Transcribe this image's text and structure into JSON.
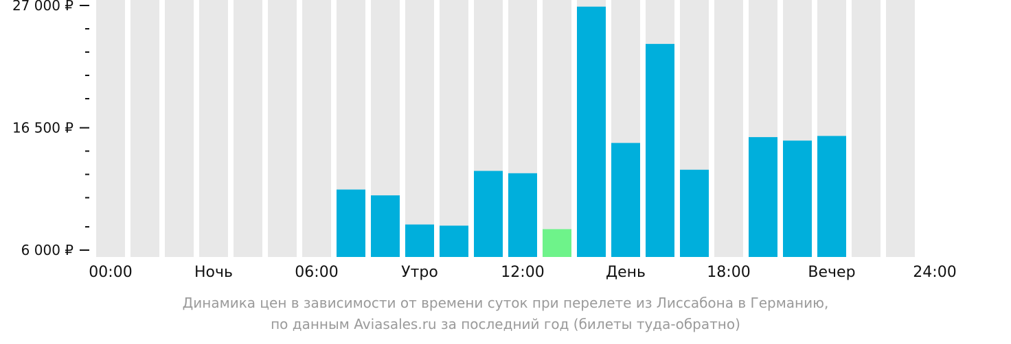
{
  "chart_data": {
    "type": "bar",
    "ylim": [
      6000,
      27000
    ],
    "y_ticks": [
      {
        "value": 27000,
        "label": "27 000 ₽"
      },
      {
        "value": 16500,
        "label": "16 500 ₽"
      },
      {
        "value": 6000,
        "label": "6 000 ₽"
      }
    ],
    "y_minor_ticks": [
      25000,
      23000,
      21000,
      19000,
      14500,
      12500,
      10500,
      8000
    ],
    "x_tick_labels": [
      "00:00",
      "Ночь",
      "06:00",
      "Утро",
      "12:00",
      "День",
      "18:00",
      "Вечер",
      "24:00"
    ],
    "hours": [
      0,
      1,
      2,
      3,
      4,
      5,
      6,
      7,
      8,
      9,
      10,
      11,
      12,
      13,
      14,
      15,
      16,
      17,
      18,
      19,
      20,
      21,
      22,
      23
    ],
    "values": [
      null,
      null,
      null,
      null,
      null,
      null,
      null,
      11200,
      10700,
      8200,
      8100,
      12800,
      12600,
      7800,
      26900,
      15200,
      23700,
      12900,
      null,
      15700,
      15400,
      15800,
      null,
      null
    ],
    "highlight_index": 13,
    "colors": {
      "bar": "#00afdc",
      "highlight": "#6ef38a",
      "background_bar": "#e8e8e8",
      "axis": "#111111"
    }
  },
  "caption": {
    "line1": "Динамика цен в зависимости от времени суток при перелете из Лиссабона в Германию,",
    "line2": "по данным Aviasales.ru за последний год (билеты туда-обратно)"
  }
}
